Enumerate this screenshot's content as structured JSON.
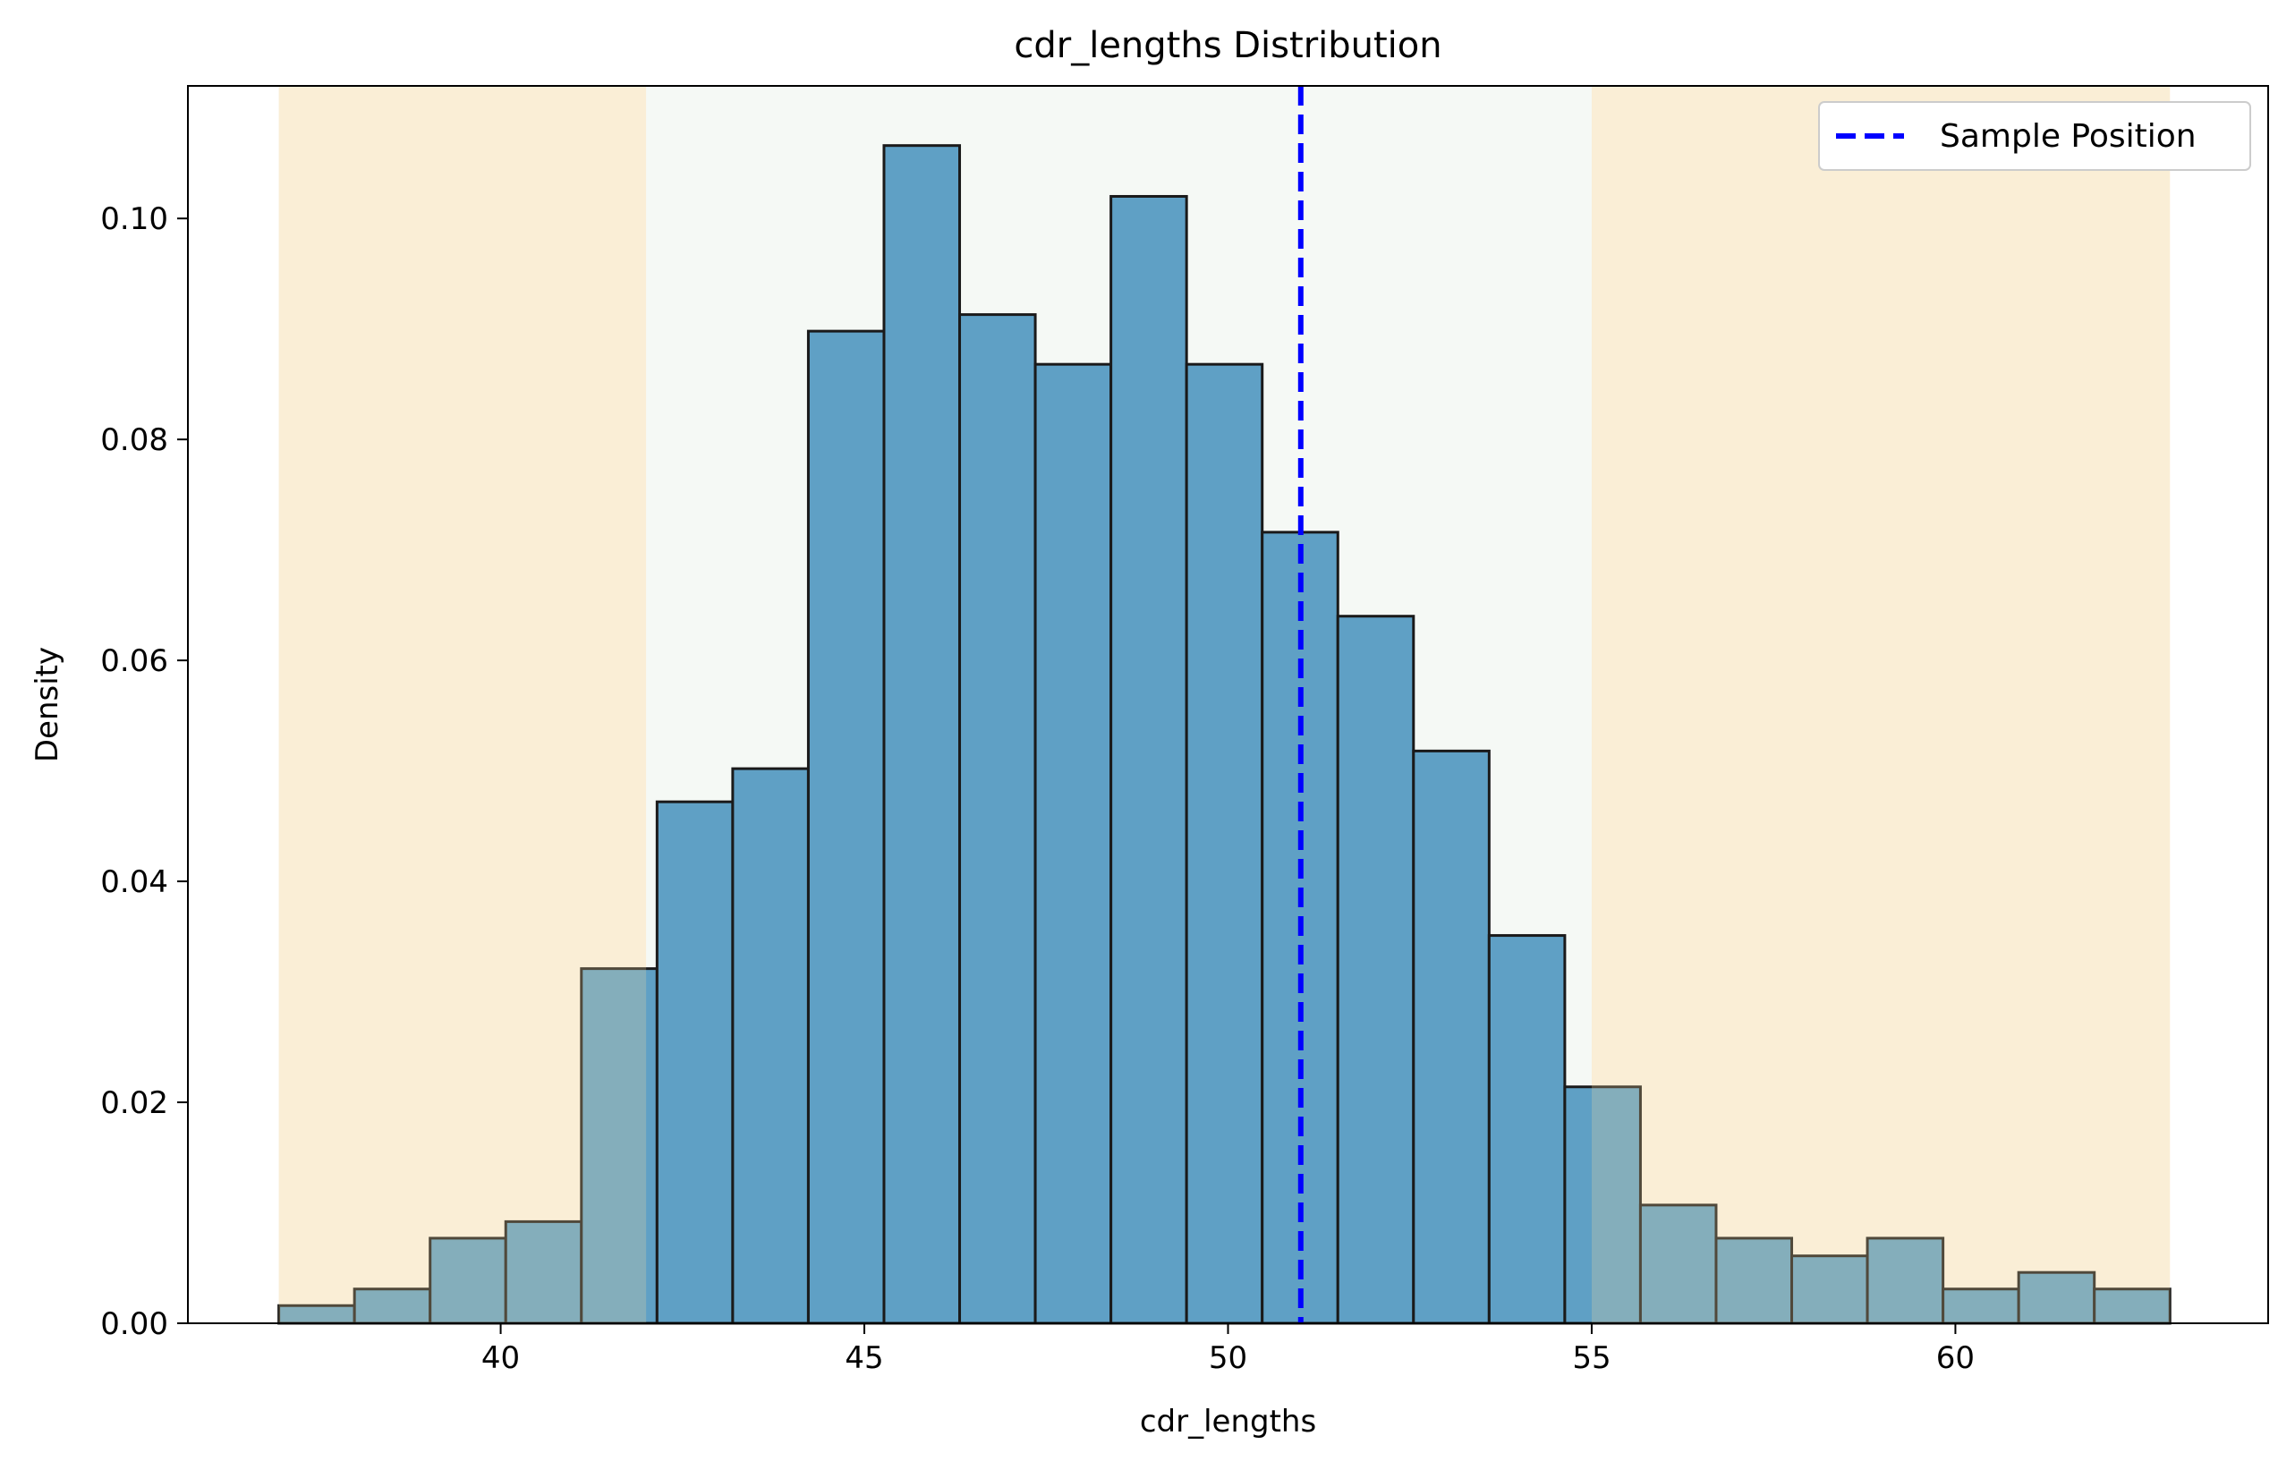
{
  "chart_data": {
    "type": "bar",
    "title": "cdr_lengths Distribution",
    "xlabel": "cdr_lengths",
    "ylabel": "Density",
    "xlim": [
      35.7,
      64.3
    ],
    "ylim": [
      0,
      0.112
    ],
    "x_ticks": [
      40,
      45,
      50,
      55,
      60
    ],
    "x_tick_labels": [
      "40",
      "45",
      "50",
      "55",
      "60"
    ],
    "y_ticks": [
      0,
      0.02,
      0.04,
      0.06,
      0.08,
      0.1
    ],
    "y_tick_labels": [
      "0.00",
      "0.02",
      "0.04",
      "0.06",
      "0.08",
      "0.10"
    ],
    "grid": false,
    "legend": {
      "position": "top-right",
      "entries": [
        "Sample Position"
      ]
    },
    "bins": {
      "edges": [
        36.95,
        37.99,
        39.03,
        40.07,
        41.11,
        42.15,
        43.19,
        44.23,
        45.27,
        46.31,
        47.35,
        48.39,
        49.43,
        50.47,
        51.51,
        52.55,
        53.59,
        54.63,
        55.67,
        56.71,
        57.75,
        58.79,
        59.83,
        60.87,
        61.91,
        62.95
      ],
      "density": [
        0.0016,
        0.0031,
        0.0077,
        0.0092,
        0.0321,
        0.0472,
        0.0502,
        0.0898,
        0.1066,
        0.0913,
        0.0868,
        0.102,
        0.0868,
        0.0716,
        0.064,
        0.0518,
        0.0351,
        0.0214,
        0.0107,
        0.0077,
        0.0061,
        0.0077,
        0.0031,
        0.0046,
        0.0031
      ]
    },
    "bar_color": "#5fa0c5",
    "bar_edge_color": "#1a1a1a",
    "shaded_regions": [
      {
        "from": 36.95,
        "to": 42.0,
        "color": "#fdf6e9"
      },
      {
        "from": 42.0,
        "to": 55.0,
        "color": "#f5f9f5"
      },
      {
        "from": 55.0,
        "to": 62.95,
        "color": "#fdf6e9"
      }
    ],
    "series": [
      {
        "name": "Sample Position",
        "x": 51.0,
        "color": "#0000ff",
        "style": "dashed"
      }
    ]
  }
}
